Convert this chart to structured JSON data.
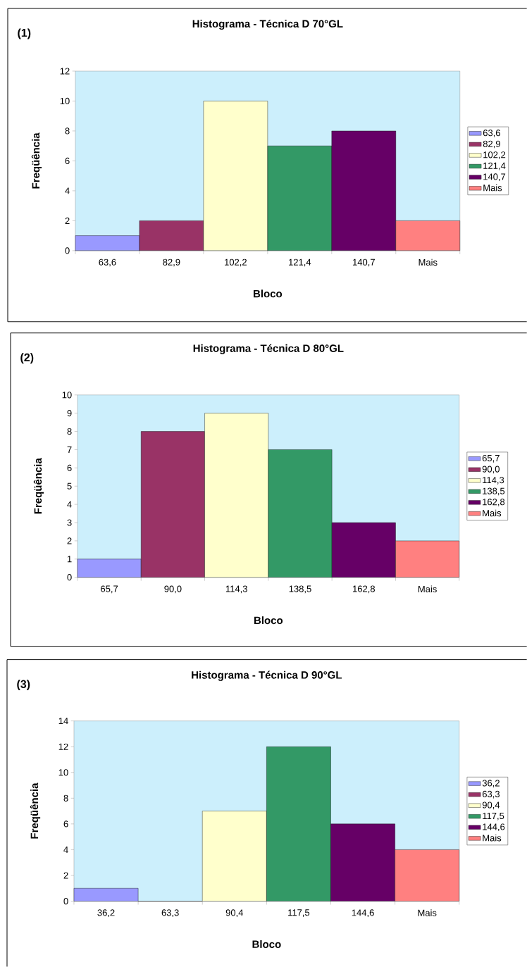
{
  "chart_data": [
    {
      "type": "bar",
      "title": "Histograma - Técnica D 70°GL",
      "annotations": [
        "(1)"
      ],
      "xlabel": "Bloco",
      "ylabel": "Freqüência",
      "categories": [
        "63,6",
        "82,9",
        "102,2",
        "121,4",
        "140,7",
        "Mais"
      ],
      "series": [
        {
          "name": "63,6",
          "color": "#9999ff",
          "values": [
            1,
            null,
            null,
            null,
            null,
            null
          ]
        },
        {
          "name": "82,9",
          "color": "#993366",
          "values": [
            null,
            2,
            null,
            null,
            null,
            null
          ]
        },
        {
          "name": "102,2",
          "color": "#ffffcc",
          "values": [
            null,
            null,
            10,
            null,
            null,
            null
          ]
        },
        {
          "name": "121,4",
          "color": "#339966",
          "values": [
            null,
            null,
            null,
            7,
            null,
            null
          ]
        },
        {
          "name": "140,7",
          "color": "#660066",
          "values": [
            null,
            null,
            null,
            null,
            8,
            null
          ]
        },
        {
          "name": "Mais",
          "color": "#ff8080",
          "values": [
            null,
            null,
            null,
            null,
            null,
            2
          ]
        }
      ],
      "ylim": [
        0,
        12
      ],
      "yticks": [
        0,
        2,
        4,
        6,
        8,
        10,
        12
      ],
      "legend": "right"
    },
    {
      "type": "bar",
      "title": "Histograma - Técnica D 80°GL",
      "annotations": [
        "(2)"
      ],
      "xlabel": "Bloco",
      "ylabel": "Freqüência",
      "categories": [
        "65,7",
        "90,0",
        "114,3",
        "138,5",
        "162,8",
        "Mais"
      ],
      "series": [
        {
          "name": "65,7",
          "color": "#9999ff",
          "values": [
            1,
            null,
            null,
            null,
            null,
            null
          ]
        },
        {
          "name": "90,0",
          "color": "#993366",
          "values": [
            null,
            8,
            null,
            null,
            null,
            null
          ]
        },
        {
          "name": "114,3",
          "color": "#ffffcc",
          "values": [
            null,
            null,
            9,
            null,
            null,
            null
          ]
        },
        {
          "name": "138,5",
          "color": "#339966",
          "values": [
            null,
            null,
            null,
            7,
            null,
            null
          ]
        },
        {
          "name": "162,8",
          "color": "#660066",
          "values": [
            null,
            null,
            null,
            null,
            3,
            null
          ]
        },
        {
          "name": "Mais",
          "color": "#ff8080",
          "values": [
            null,
            null,
            null,
            null,
            null,
            2
          ]
        }
      ],
      "ylim": [
        0,
        10
      ],
      "yticks": [
        0,
        1,
        2,
        3,
        4,
        5,
        6,
        7,
        8,
        9,
        10
      ],
      "legend": "right"
    },
    {
      "type": "bar",
      "title": "Histograma - Técnica D 90°GL",
      "annotations": [
        "(3)"
      ],
      "xlabel": "Bloco",
      "ylabel": "Freqüência",
      "categories": [
        "36,2",
        "63,3",
        "90,4",
        "117,5",
        "144,6",
        "Mais"
      ],
      "series": [
        {
          "name": "36,2",
          "color": "#9999ff",
          "values": [
            1,
            null,
            null,
            null,
            null,
            null
          ]
        },
        {
          "name": "63,3",
          "color": "#993366",
          "values": [
            null,
            0,
            null,
            null,
            null,
            null
          ]
        },
        {
          "name": "90,4",
          "color": "#ffffcc",
          "values": [
            null,
            null,
            7,
            null,
            null,
            null
          ]
        },
        {
          "name": "117,5",
          "color": "#339966",
          "values": [
            null,
            null,
            null,
            12,
            null,
            null
          ]
        },
        {
          "name": "144,6",
          "color": "#660066",
          "values": [
            null,
            null,
            null,
            null,
            6,
            null
          ]
        },
        {
          "name": "Mais",
          "color": "#ff8080",
          "values": [
            null,
            null,
            null,
            null,
            null,
            4
          ]
        }
      ],
      "ylim": [
        0,
        14
      ],
      "yticks": [
        0,
        2,
        4,
        6,
        8,
        10,
        12,
        14
      ],
      "legend": "right"
    }
  ]
}
